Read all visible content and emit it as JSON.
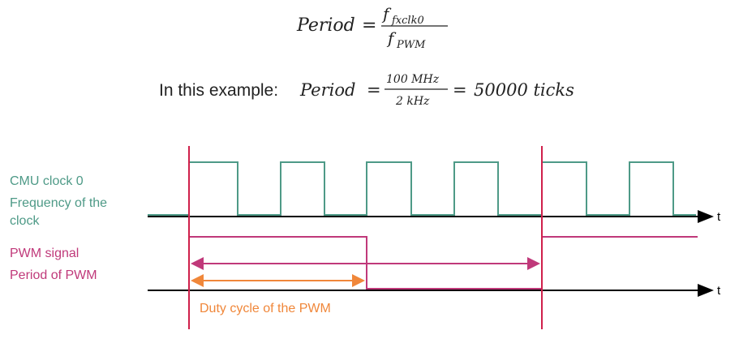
{
  "formula": {
    "lhs": "Period",
    "equals": "=",
    "numerator": "f",
    "numerator_sub": "fxclk0",
    "denominator": "f",
    "denominator_sub": "PWM"
  },
  "example": {
    "prefix": "In this example:",
    "lhs": "Period",
    "equals": "=",
    "numerator": "100 MHz",
    "denominator": "2 kHz",
    "equals2": "=",
    "result": "50000 ticks"
  },
  "labels": {
    "cmu_line1": "CMU clock 0",
    "cmu_line2": "Frequency of the",
    "cmu_line3": "clock",
    "pwm_line1": "PWM signal",
    "pwm_line2": "Period of PWM",
    "duty": "Duty cycle of the PWM",
    "t_top": "t",
    "t_bottom": "t"
  },
  "colors": {
    "clock": "#4e9a87",
    "pwm": "#c0397a",
    "marker": "#d0204b",
    "duty": "#f0873a",
    "axis": "#000000",
    "text": "#222222"
  }
}
